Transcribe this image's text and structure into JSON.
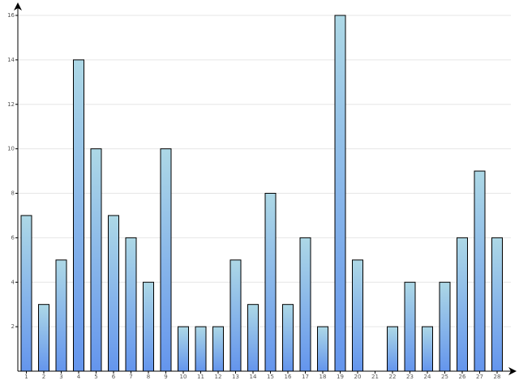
{
  "chart_data": {
    "type": "bar",
    "categories": [
      "1",
      "2",
      "3",
      "4",
      "5",
      "6",
      "7",
      "8",
      "9",
      "10",
      "11",
      "12",
      "13",
      "14",
      "15",
      "16",
      "17",
      "18",
      "19",
      "20",
      "21",
      "22",
      "23",
      "24",
      "25",
      "26",
      "27",
      "28"
    ],
    "values": [
      7,
      3,
      5,
      14,
      10,
      7,
      6,
      4,
      10,
      2,
      2,
      2,
      5,
      3,
      8,
      3,
      6,
      2,
      16,
      5,
      0,
      2,
      4,
      2,
      4,
      6,
      9,
      6
    ],
    "y_ticks": [
      "2",
      "4",
      "6",
      "8",
      "10",
      "12",
      "14",
      "16"
    ],
    "ylim": [
      0,
      16
    ],
    "grid": true,
    "legend": "none",
    "colors": {
      "bar_top": "#add8e6",
      "bar_bottom": "#6495ed",
      "bar_stroke": "#000000",
      "grid": "#e6e6e6",
      "axis": "#000000"
    }
  }
}
